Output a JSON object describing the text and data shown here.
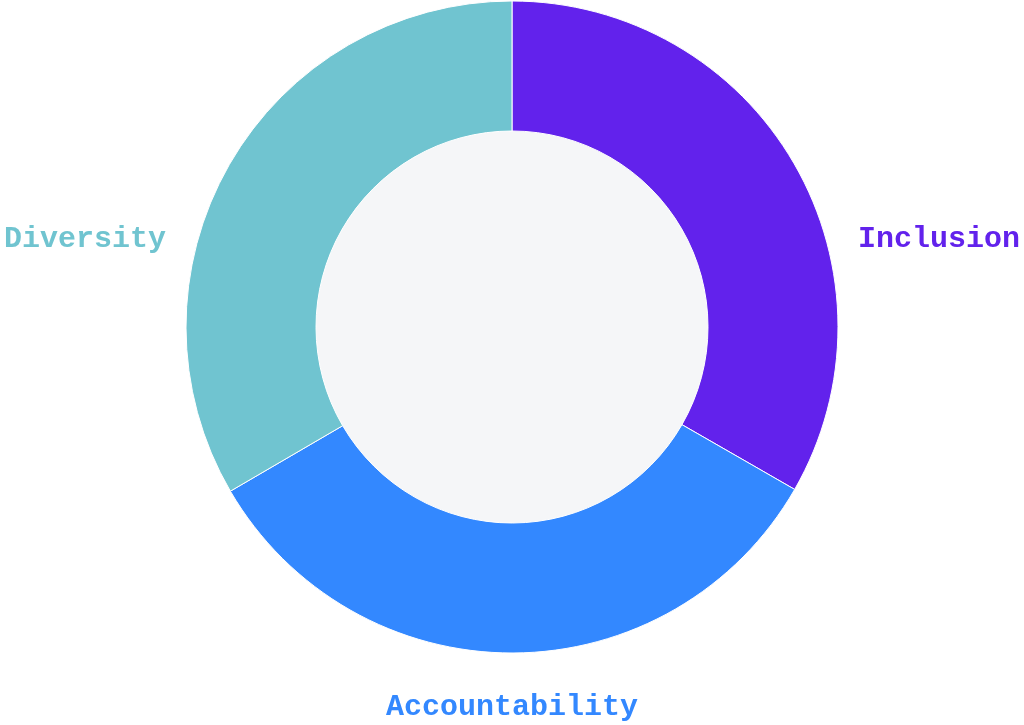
{
  "chart_data": {
    "type": "donut",
    "categories": [
      "Inclusion",
      "Accountability",
      "Diversity"
    ],
    "values": [
      33.3,
      33.3,
      33.4
    ],
    "colors": [
      "#6222ec",
      "#3388ff",
      "#70c4d0"
    ]
  }
}
